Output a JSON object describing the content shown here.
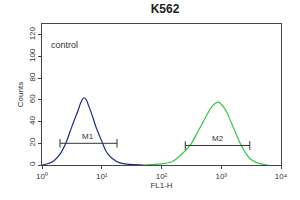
{
  "chart_data": {
    "type": "line",
    "title": "K562",
    "x_label": "FL1-H",
    "y_label": "Counts",
    "log": "x",
    "grid": false,
    "xlim": [
      1,
      10000
    ],
    "xticks": [
      {
        "value": 1,
        "label": "10⁰"
      },
      {
        "value": 10,
        "label": "10¹"
      },
      {
        "value": 100,
        "label": "10²"
      },
      {
        "value": 1000,
        "label": "10³"
      },
      {
        "value": 10000,
        "label": "10⁴"
      }
    ],
    "ylim": [
      0,
      130
    ],
    "yticks": [
      0,
      20,
      40,
      60,
      80,
      100,
      120
    ],
    "series": [
      {
        "name": "control",
        "color": "#1f2a8c",
        "x": [
          1,
          1.5,
          2,
          2.5,
          3,
          3.5,
          4,
          4.5,
          5,
          5.5,
          6,
          7,
          8,
          10,
          12,
          15,
          20,
          30,
          50
        ],
        "values": [
          0,
          3,
          10,
          20,
          32,
          42,
          50,
          58,
          62,
          60,
          55,
          45,
          35,
          22,
          12,
          6,
          2,
          0.5,
          0
        ]
      },
      {
        "color": "#2ecc40",
        "x": [
          50,
          100,
          150,
          200,
          300,
          400,
          500,
          600,
          700,
          800,
          900,
          1000,
          1200,
          1500,
          2000,
          2500,
          3000,
          4000,
          6000
        ],
        "values": [
          0,
          1,
          3,
          8,
          18,
          30,
          40,
          48,
          54,
          57,
          58,
          56,
          50,
          38,
          22,
          12,
          6,
          2,
          0
        ]
      }
    ],
    "markers": [
      {
        "label": "M1",
        "x": [
          2,
          18
        ],
        "y": 20
      },
      {
        "label": "M2",
        "x": [
          250,
          3000
        ],
        "y": 18
      }
    ]
  }
}
